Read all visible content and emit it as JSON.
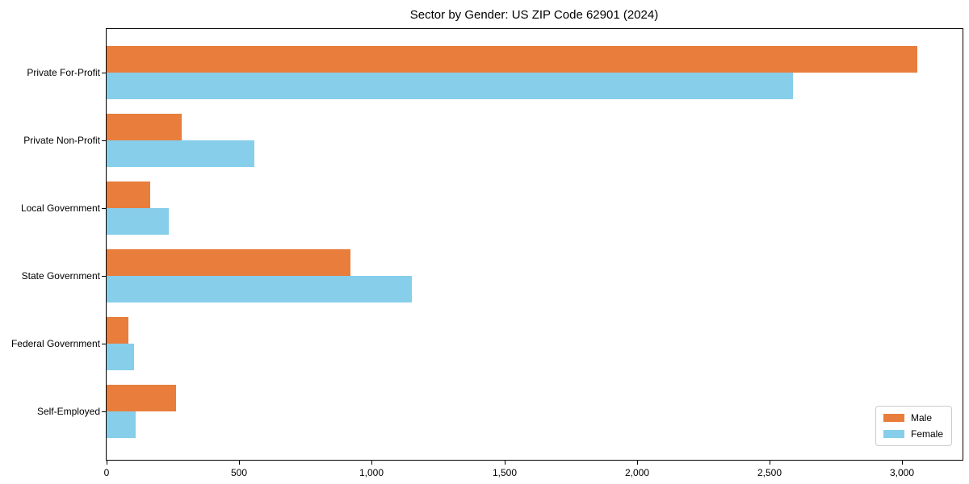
{
  "title": "Sector by Gender: US ZIP Code 62901 (2024)",
  "chart_data": {
    "type": "bar",
    "orientation": "horizontal",
    "title": "Sector by Gender: US ZIP Code 62901 (2024)",
    "xlabel": "",
    "ylabel": "",
    "categories": [
      "Private For-Profit",
      "Private Non-Profit",
      "Local Government",
      "State Government",
      "Federal Government",
      "Self-Employed"
    ],
    "series": [
      {
        "name": "Male",
        "color": "#e87d3c",
        "values": [
          3056,
          283,
          165,
          919,
          81,
          261
        ]
      },
      {
        "name": "Female",
        "color": "#87ceeb",
        "values": [
          2590,
          558,
          235,
          1150,
          103,
          111
        ]
      }
    ],
    "xlim": [
      0,
      3228
    ],
    "xticks": [
      0,
      500,
      1000,
      1500,
      2000,
      2500,
      3000
    ],
    "xtick_labels": [
      "0",
      "500",
      "1,000",
      "1,500",
      "2,000",
      "2,500",
      "3,000"
    ],
    "grid": false,
    "legend_position": "lower right"
  },
  "legend": {
    "items": [
      {
        "label": "Male",
        "color": "#e87d3c"
      },
      {
        "label": "Female",
        "color": "#87ceeb"
      }
    ]
  }
}
